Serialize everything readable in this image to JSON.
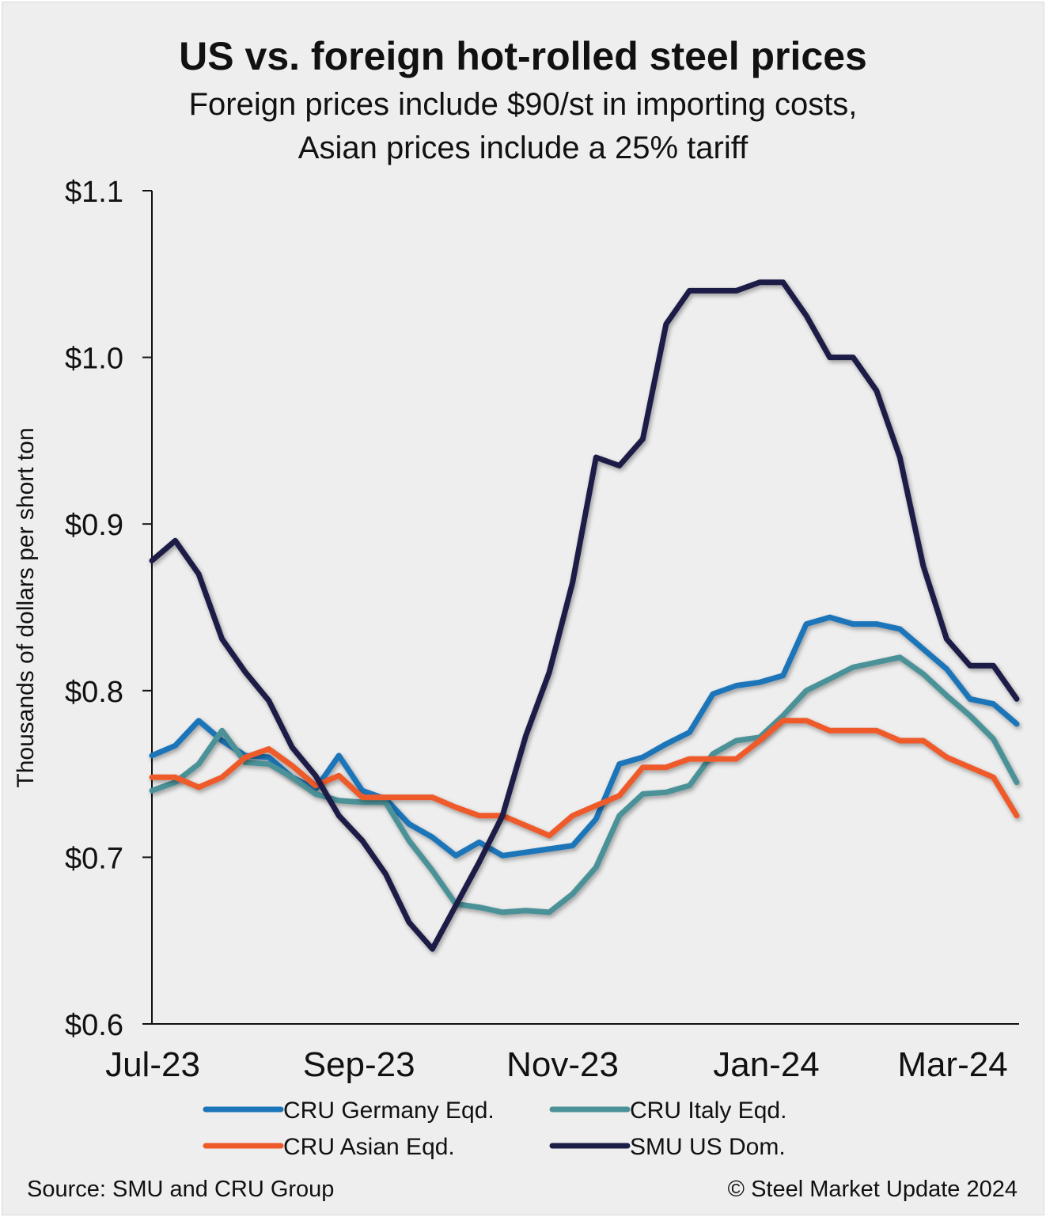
{
  "chart_data": {
    "type": "line",
    "title": "US vs. foreign hot-rolled steel prices",
    "subtitle_lines": [
      "Foreign prices include $90/st in importing costs,",
      "Asian prices include a 25% tariff"
    ],
    "ylabel": "Thousands of dollars per short ton",
    "xlabel": "",
    "ylim": [
      0.6,
      1.1
    ],
    "yticks": [
      {
        "value": 0.6,
        "label": "$0.6"
      },
      {
        "value": 0.7,
        "label": "$0.7"
      },
      {
        "value": 0.8,
        "label": "$0.8"
      },
      {
        "value": 0.9,
        "label": "$0.9"
      },
      {
        "value": 1.0,
        "label": "$1.0"
      },
      {
        "value": 1.1,
        "label": "$1.1"
      }
    ],
    "xticks": [
      {
        "date": "2023-07-01",
        "label": "Jul-23"
      },
      {
        "date": "2023-09-01",
        "label": "Sep-23"
      },
      {
        "date": "2023-11-01",
        "label": "Nov-23"
      },
      {
        "date": "2024-01-01",
        "label": "Jan-24"
      },
      {
        "date": "2024-03-01",
        "label": "Mar-24"
      }
    ],
    "grid": false,
    "legend_position": "bottom",
    "x": [
      "2023-07-01",
      "2023-07-08",
      "2023-07-15",
      "2023-07-22",
      "2023-07-29",
      "2023-08-05",
      "2023-08-12",
      "2023-08-19",
      "2023-08-26",
      "2023-09-02",
      "2023-09-09",
      "2023-09-16",
      "2023-09-23",
      "2023-09-30",
      "2023-10-07",
      "2023-10-14",
      "2023-10-21",
      "2023-10-28",
      "2023-11-04",
      "2023-11-11",
      "2023-11-18",
      "2023-11-25",
      "2023-12-02",
      "2023-12-09",
      "2023-12-16",
      "2023-12-23",
      "2023-12-30",
      "2024-01-06",
      "2024-01-13",
      "2024-01-20",
      "2024-01-27",
      "2024-02-03",
      "2024-02-10",
      "2024-02-17",
      "2024-02-24",
      "2024-03-02",
      "2024-03-09",
      "2024-03-16"
    ],
    "series": [
      {
        "name": "CRU Germany Eqd.",
        "color": "#1b75b9",
        "values": [
          0.761,
          0.767,
          0.782,
          0.77,
          0.761,
          0.76,
          0.748,
          0.741,
          0.761,
          0.74,
          0.735,
          0.72,
          0.712,
          0.701,
          0.709,
          0.701,
          0.703,
          0.705,
          0.707,
          0.723,
          0.756,
          0.76,
          0.768,
          0.775,
          0.798,
          0.803,
          0.805,
          0.809,
          0.84,
          0.844,
          0.84,
          0.84,
          0.837,
          0.825,
          0.813,
          0.795,
          0.792,
          0.78
        ]
      },
      {
        "name": "CRU Italy Eqd.",
        "color": "#4b9298",
        "values": [
          0.74,
          0.745,
          0.756,
          0.776,
          0.757,
          0.756,
          0.748,
          0.738,
          0.734,
          0.733,
          0.733,
          0.71,
          0.692,
          0.672,
          0.67,
          0.667,
          0.668,
          0.667,
          0.678,
          0.694,
          0.725,
          0.738,
          0.739,
          0.743,
          0.762,
          0.77,
          0.772,
          0.785,
          0.8,
          0.807,
          0.814,
          0.817,
          0.82,
          0.81,
          0.797,
          0.785,
          0.771,
          0.745
        ]
      },
      {
        "name": "CRU Asian Eqd.",
        "color": "#ef5a2b",
        "values": [
          0.748,
          0.748,
          0.742,
          0.748,
          0.76,
          0.765,
          0.755,
          0.743,
          0.749,
          0.736,
          0.736,
          0.736,
          0.736,
          0.73,
          0.725,
          0.725,
          0.719,
          0.713,
          0.725,
          0.731,
          0.737,
          0.754,
          0.754,
          0.759,
          0.759,
          0.759,
          0.77,
          0.782,
          0.782,
          0.776,
          0.776,
          0.776,
          0.77,
          0.77,
          0.76,
          0.754,
          0.748,
          0.725
        ]
      },
      {
        "name": "SMU US Dom.",
        "color": "#1c1e46",
        "values": [
          0.878,
          0.89,
          0.87,
          0.831,
          0.811,
          0.794,
          0.766,
          0.749,
          0.725,
          0.71,
          0.69,
          0.661,
          0.645,
          0.671,
          0.697,
          0.725,
          0.773,
          0.811,
          0.865,
          0.94,
          0.935,
          0.951,
          1.02,
          1.04,
          1.04,
          1.04,
          1.045,
          1.045,
          1.025,
          1.0,
          1.0,
          0.98,
          0.94,
          0.875,
          0.831,
          0.815,
          0.815,
          0.795
        ]
      }
    ]
  },
  "footer": {
    "source": "Source: SMU and CRU Group",
    "copyright": "© Steel Market Update 2024"
  }
}
